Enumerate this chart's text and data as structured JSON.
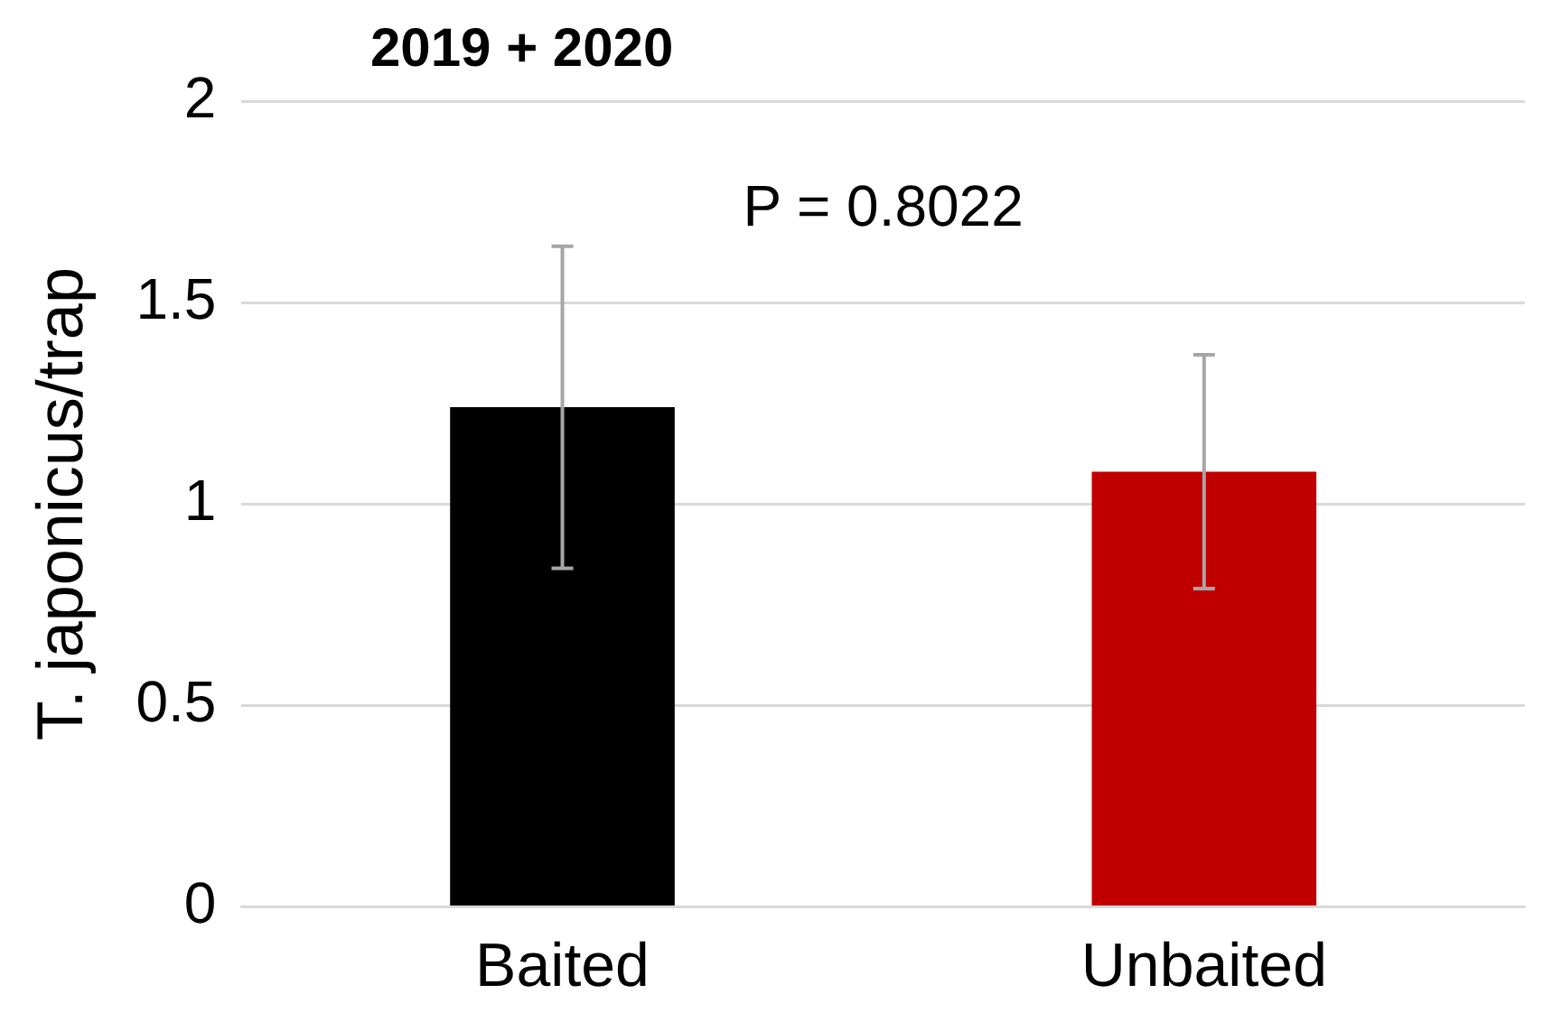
{
  "chart_data": {
    "type": "bar",
    "title": "2019 + 2020",
    "ylabel": "T. japonicus/trap",
    "categories": [
      "Baited",
      "Unbaited"
    ],
    "values": [
      1.24,
      1.08
    ],
    "colors": [
      "#000000",
      "#c00000"
    ],
    "errors": [
      0.4,
      0.29
    ],
    "ylim": [
      0,
      2
    ],
    "yticks": [
      0,
      0.5,
      1,
      1.5,
      2
    ],
    "grid": "y",
    "legend": false,
    "annotations": [
      "P = 0.8022"
    ]
  }
}
